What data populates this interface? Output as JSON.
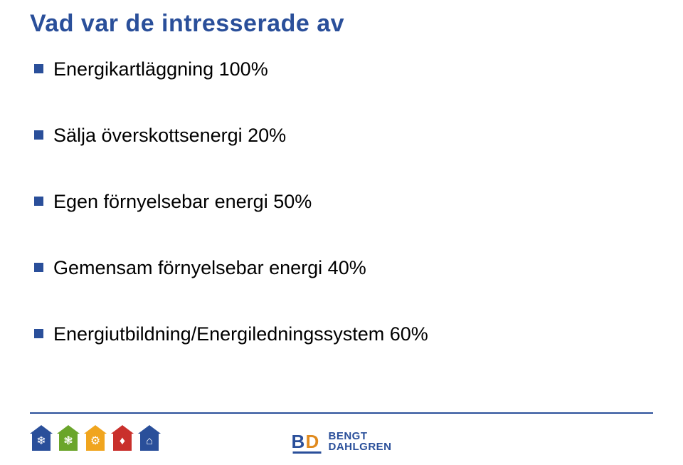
{
  "title": "Vad var de intresserade av",
  "title_color": "#2a4f9a",
  "bullet_marker_color": "#2a4f9a",
  "text_color": "#000000",
  "bullets": [
    "Energikartläggning 100%",
    "Sälja överskottsenergi  20%",
    "Egen förnyelsebar energi 50%",
    "Gemensam förnyelsebar energi 40%",
    "Energiutbildning/Energiledningssystem 60%"
  ],
  "footer_line_color": "#2a4f9a",
  "footer_icons": [
    {
      "color": "#2a4f9a",
      "glyph": "❄"
    },
    {
      "color": "#6aa52a",
      "glyph": "❃"
    },
    {
      "color": "#f0a51e",
      "glyph": "⚙"
    },
    {
      "color": "#c9302c",
      "glyph": "♦"
    },
    {
      "color": "#2a4f9a",
      "glyph": "⌂"
    }
  ],
  "logo": {
    "mark_letter_1": "B",
    "mark_letter_2": "D",
    "line1": "BENGT",
    "line2": "DAHLGREN",
    "color_primary": "#2a4f9a",
    "color_accent": "#e08a1e"
  }
}
